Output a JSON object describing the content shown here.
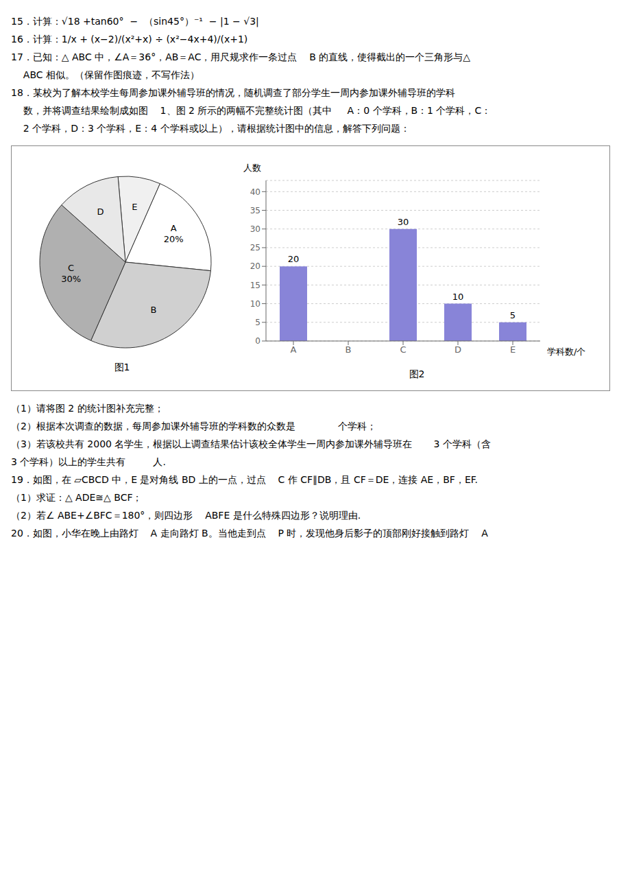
{
  "chart_data": [
    {
      "type": "pie",
      "title": "图1",
      "annotations": [
        "15．计算：√18 +tan60°  −  （sin45°）⁻¹  − |1 − √3|",
        "16．计算：1/x + (x−2)/(x²+x) ÷ (x²−4x+4)/(x+1)",
        "17．已知：△ ABC 中，∠A＝36°，AB＝AC，用尺规求作一条过点    B 的直线，使得截出的一个三角形与△",
        "    ABC 相似。（保留作图痕迹，不写作法）",
        "18．某校为了解本校学生每周参加课外辅导班的情况，随机调查了部分学生一周内参加课外辅导班的学科",
        "    数，并将调查结果绘制成如图    1、图 2 所示的两幅不完整统计图（其中     A：0 个学科，B：1 个学科，C：",
        "    2 个学科，D：3 个学科，E：4 个学科或以上），请根据统计图中的信息，解答下列问题："
      ],
      "categories": [
        "E",
        "A",
        "B",
        "C",
        "D"
      ],
      "values": [
        8,
        20,
        30,
        30,
        12
      ],
      "value_labels": [
        null,
        "20%",
        null,
        "30%",
        null
      ],
      "colors": [
        "#f0f0f0",
        "#ffffff",
        "#d0d0d0",
        "#b0b0b0",
        "#e8e8e8"
      ]
    },
    {
      "type": "bar",
      "title": "图2",
      "x_label": "学科数/个",
      "y_label": "人数",
      "categories": [
        "A",
        "B",
        "C",
        "D",
        "E"
      ],
      "values": [
        20,
        0,
        30,
        10,
        5
      ],
      "value_labels": [
        "20",
        null,
        "30",
        "10",
        "5"
      ],
      "color": "#8884d8",
      "ylim": [
        0,
        43
      ],
      "yticks": [
        0,
        5,
        10,
        15,
        20,
        25,
        30,
        35,
        40
      ],
      "grid": true,
      "annotations": [
        "（1）请将图 2 的统计图补充完整；",
        "（2）根据本次调查的数据，每周参加课外辅导班的学科数的众数是              个学科；",
        "（3）若该校共有 2000 名学生，根据以上调查结果估计该校全体学生一周内参加课外辅导班在       3 个学科（含",
        "3 个学科）以上的学生共有         人.",
        "19．如图，在 ▱CBCD 中，E 是对角线 BD 上的一点，过点    C 作 CF∥DB，且 CF＝DE，连接 AE，BF，EF.",
        "（1）求证：△ ADE≅△ BCF；",
        "（2）若∠ ABE+∠BFC＝180°，则四边形    ABFE 是什么特殊四边形？说明理由.",
        "20．如图，小华在晚上由路灯    A 走向路灯 B。当他走到点    P 时，发现他身后影子的顶部刚好接触到路灯    A"
      ]
    }
  ]
}
